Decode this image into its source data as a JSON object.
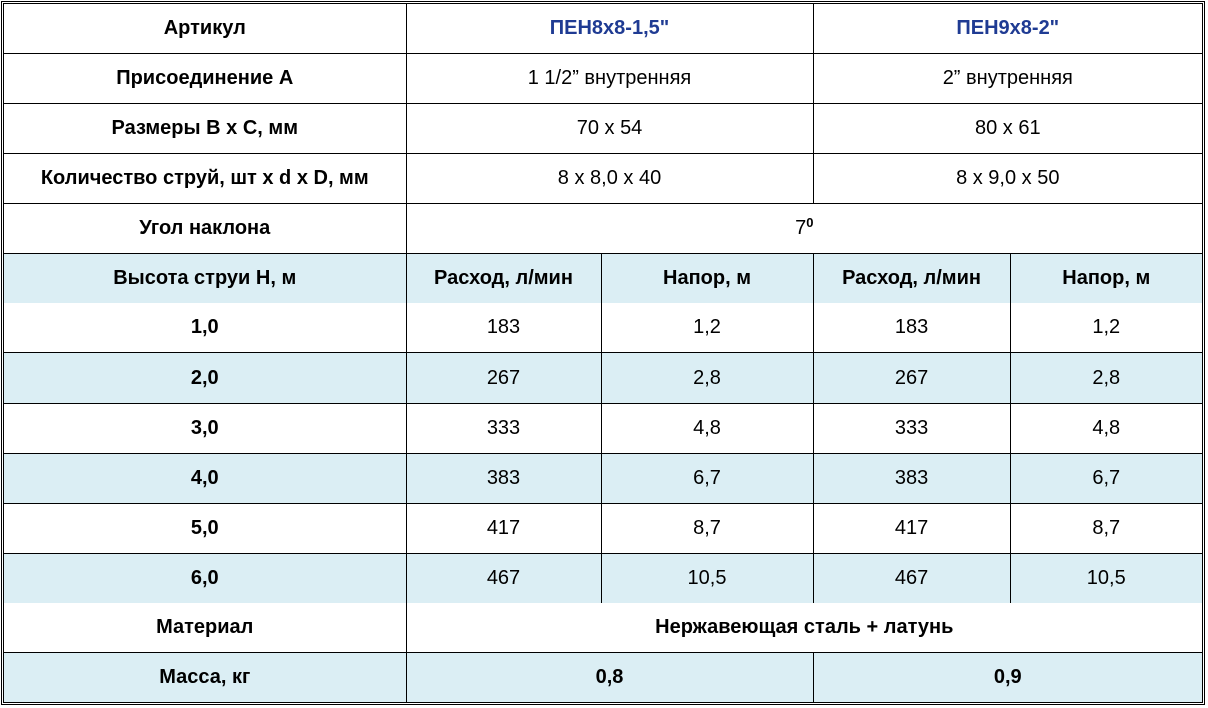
{
  "colors": {
    "header_text": "#1f3b93",
    "shaded_row": "#dbeef4"
  },
  "article": {
    "label": "Артикул",
    "models": [
      "ПЕН8x8-1,5\"",
      "ПЕН9x8-2\""
    ]
  },
  "connection": {
    "label": "Присоединение A",
    "values": [
      "1 1/2” внутренняя",
      "2” внутренняя"
    ]
  },
  "dimensions": {
    "label": "Размеры B x C, мм",
    "values": [
      "70 x 54",
      "80 x 61"
    ]
  },
  "jets": {
    "label": "Количество струй, шт x d x D, мм",
    "values": [
      "8 x 8,0 x 40",
      "8 x 9,0 x 50"
    ]
  },
  "angle": {
    "label": "Угол наклона",
    "value": "7",
    "sup": "0"
  },
  "perf_header": {
    "label": "Высота струи H, м",
    "flow": "Расход, л/мин",
    "head": "Напор, м"
  },
  "rows": [
    {
      "h": "1,0",
      "f1": "183",
      "p1": "1,2",
      "f2": "183",
      "p2": "1,2"
    },
    {
      "h": "2,0",
      "f1": "267",
      "p1": "2,8",
      "f2": "267",
      "p2": "2,8"
    },
    {
      "h": "3,0",
      "f1": "333",
      "p1": "4,8",
      "f2": "333",
      "p2": "4,8"
    },
    {
      "h": "4,0",
      "f1": "383",
      "p1": "6,7",
      "f2": "383",
      "p2": "6,7"
    },
    {
      "h": "5,0",
      "f1": "417",
      "p1": "8,7",
      "f2": "417",
      "p2": "8,7"
    },
    {
      "h": "6,0",
      "f1": "467",
      "p1": "10,5",
      "f2": "467",
      "p2": "10,5"
    }
  ],
  "material": {
    "label": "Материал",
    "value": "Нержавеющая сталь + латунь"
  },
  "mass": {
    "label": "Масса, кг",
    "values": [
      "0,8",
      "0,9"
    ]
  }
}
